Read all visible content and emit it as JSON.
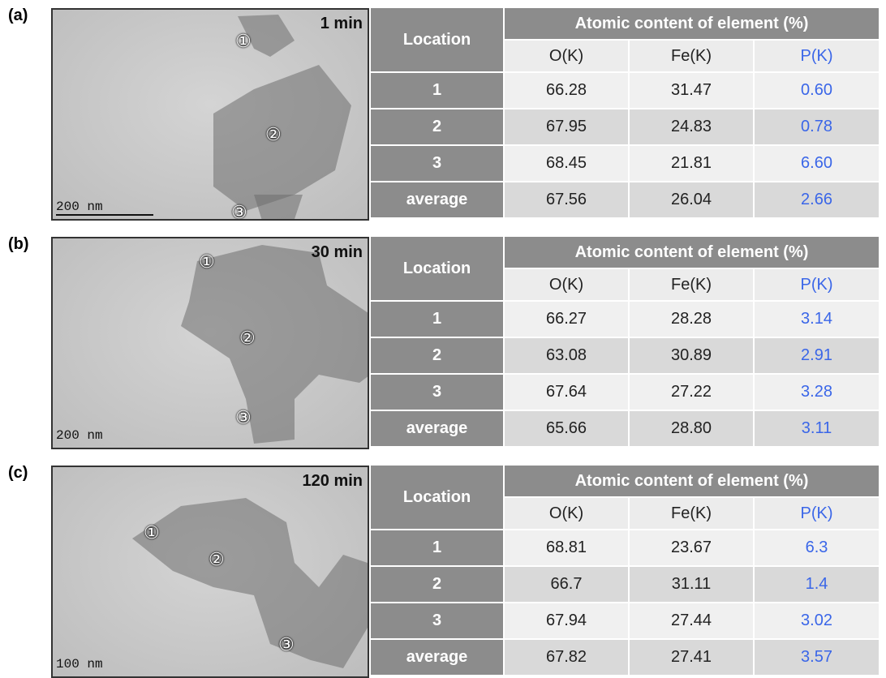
{
  "panels": [
    {
      "label": "(a)",
      "time": "1 min",
      "scale": "200 nm",
      "markers": [
        "①",
        "②",
        "③"
      ],
      "table": {
        "location_header": "Location",
        "group_header": "Atomic content of element (%)",
        "columns": [
          "O(K)",
          "Fe(K)",
          "P(K)"
        ],
        "rows": [
          [
            "1",
            "66.28",
            "31.47",
            "0.60"
          ],
          [
            "2",
            "67.95",
            "24.83",
            "0.78"
          ],
          [
            "3",
            "68.45",
            "21.81",
            "6.60"
          ],
          [
            "average",
            "67.56",
            "26.04",
            "2.66"
          ]
        ]
      }
    },
    {
      "label": "(b)",
      "time": "30 min",
      "scale": "200 nm",
      "markers": [
        "①",
        "②",
        "③"
      ],
      "table": {
        "location_header": "Location",
        "group_header": "Atomic content of element (%)",
        "columns": [
          "O(K)",
          "Fe(K)",
          "P(K)"
        ],
        "rows": [
          [
            "1",
            "66.27",
            "28.28",
            "3.14"
          ],
          [
            "2",
            "63.08",
            "30.89",
            "2.91"
          ],
          [
            "3",
            "67.64",
            "27.22",
            "3.28"
          ],
          [
            "average",
            "65.66",
            "28.80",
            "3.11"
          ]
        ]
      }
    },
    {
      "label": "(c)",
      "time": "120 min",
      "scale": "100 nm",
      "markers": [
        "①",
        "②",
        "③"
      ],
      "table": {
        "location_header": "Location",
        "group_header": "Atomic content of element (%)",
        "columns": [
          "O(K)",
          "Fe(K)",
          "P(K)"
        ],
        "rows": [
          [
            "1",
            "68.81",
            "23.67",
            "6.3"
          ],
          [
            "2",
            "66.7",
            "31.11",
            "1.4"
          ],
          [
            "3",
            "67.94",
            "27.44",
            "3.02"
          ],
          [
            "average",
            "67.82",
            "27.41",
            "3.57"
          ]
        ]
      }
    }
  ]
}
